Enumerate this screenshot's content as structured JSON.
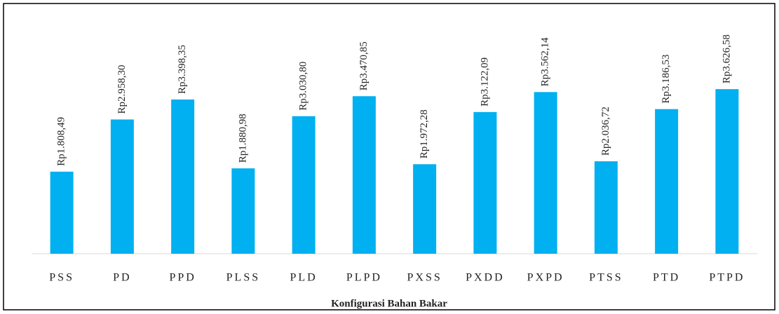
{
  "chart_data": {
    "type": "bar",
    "x_label": "Konfigurasi Bahan Bakar",
    "categories": [
      "PSS",
      "PD",
      "PPD",
      "PLSS",
      "PLD",
      "PLPD",
      "PXSS",
      "PXDD",
      "PXPD",
      "PTSS",
      "PTD",
      "PTPD"
    ],
    "values": [
      1808.49,
      2958.3,
      3398.35,
      1880.98,
      3030.8,
      3470.85,
      1972.28,
      3122.09,
      3562.14,
      2036.72,
      3186.53,
      3626.58
    ],
    "value_labels": [
      "Rp1.808,49",
      "Rp2.958,30",
      "Rp3.398,35",
      "Rp1.880,98",
      "Rp3.030,80",
      "Rp3.470,85",
      "Rp1.972,28",
      "Rp3.122,09",
      "Rp3.562,14",
      "Rp2.036,72",
      "Rp3.186,53",
      "Rp3.626,58"
    ],
    "color": "#00b0f0",
    "ylim": [
      0,
      4000
    ]
  }
}
